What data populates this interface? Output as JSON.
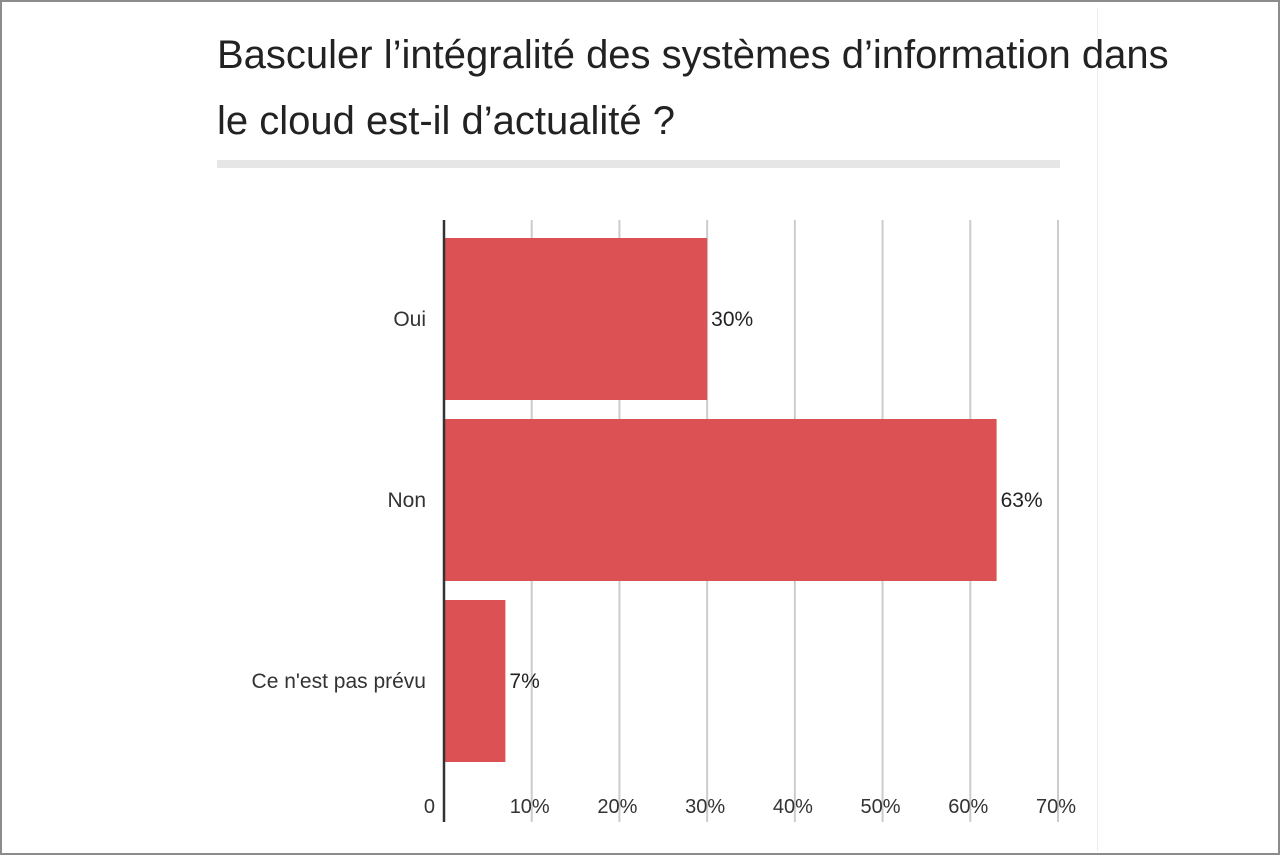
{
  "chart_data": {
    "type": "bar",
    "orientation": "horizontal",
    "title": "Basculer l’intégralité des systèmes d’information dans le cloud est-il d’actualité ?",
    "categories": [
      "Oui",
      "Non",
      "Ce n'est pas prévu"
    ],
    "values": [
      30,
      63,
      7
    ],
    "data_labels": [
      "30%",
      "63%",
      "7%"
    ],
    "xlim": [
      0,
      70
    ],
    "xticks": [
      0,
      10,
      20,
      30,
      40,
      50,
      60,
      70
    ],
    "xtick_labels": [
      "0",
      "10%",
      "20%",
      "30%",
      "40%",
      "50%",
      "60%",
      "70%"
    ],
    "grid": true,
    "legend": "none",
    "bar_color": "#db5154",
    "grid_color": "#cccccc",
    "axis_color": "#333333"
  }
}
